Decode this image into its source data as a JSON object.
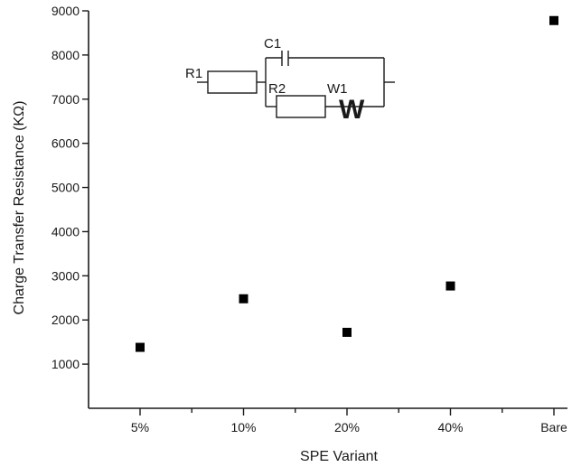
{
  "chart_data": {
    "type": "scatter",
    "xlabel": "SPE Variant",
    "ylabel": "Charge Transfer Resistance (KΩ)",
    "categories": [
      "5%",
      "10%",
      "20%",
      "40%",
      "Bare"
    ],
    "series": [
      {
        "values": [
          1380,
          2480,
          1720,
          2770,
          8780
        ]
      }
    ],
    "ylim": [
      0,
      9000
    ],
    "yticks": [
      1000,
      2000,
      3000,
      4000,
      5000,
      6000,
      7000,
      8000,
      9000
    ],
    "grid": false,
    "marker": "square",
    "colors": {
      "marker": "#000000",
      "axis": "#1a1a1a"
    },
    "inset": {
      "type": "equivalent-circuit",
      "labels": {
        "r1": "R1",
        "c1": "C1",
        "r2": "R2",
        "w1": "W1",
        "w_symbol": "W"
      }
    }
  }
}
